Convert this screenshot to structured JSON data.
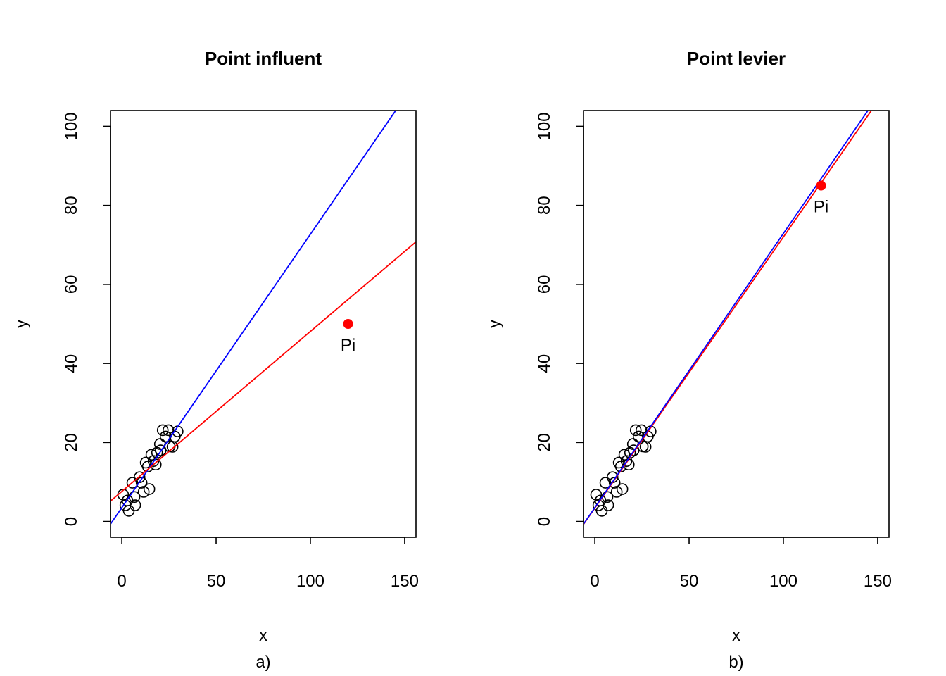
{
  "chart_data": [
    {
      "type": "scatter",
      "title": "Point influent",
      "xlabel": "x",
      "ylabel": "y",
      "subtitle": "a)",
      "xlim": [
        0,
        150
      ],
      "ylim": [
        0,
        100
      ],
      "xticks": [
        0,
        50,
        100,
        150
      ],
      "yticks": [
        0,
        20,
        40,
        60,
        80,
        100
      ],
      "grid": false,
      "points": {
        "x": [
          0.7,
          1.9,
          3.7,
          3.0,
          5.6,
          7.1,
          6.7,
          9.4,
          10.5,
          11.6,
          12.7,
          13.8,
          14.6,
          15.7,
          16.8,
          18.0,
          18.7,
          20.2,
          20.6,
          21.7,
          23.2,
          24.7,
          25.4,
          26.9,
          28.1,
          29.6
        ],
        "y": [
          6.8,
          4.1,
          2.7,
          5.3,
          9.8,
          4.1,
          6.2,
          11.2,
          9.8,
          7.5,
          14.9,
          13.9,
          8.2,
          16.9,
          15.3,
          14.4,
          17.4,
          19.6,
          18.0,
          23.1,
          21.5,
          23.1,
          19.0,
          18.9,
          21.5,
          22.8
        ]
      },
      "special_point": {
        "label": "Pi",
        "x": 120,
        "y": 50,
        "color": "#ff0000"
      },
      "lines": [
        {
          "color": "#0000ff",
          "intercept": 3.5,
          "slope": 0.692
        },
        {
          "color": "#ff0000",
          "intercept": 7.6,
          "slope": 0.405
        }
      ]
    },
    {
      "type": "scatter",
      "title": "Point levier",
      "xlabel": "x",
      "ylabel": "y",
      "subtitle": "b)",
      "xlim": [
        0,
        150
      ],
      "ylim": [
        0,
        100
      ],
      "xticks": [
        0,
        50,
        100,
        150
      ],
      "yticks": [
        0,
        20,
        40,
        60,
        80,
        100
      ],
      "grid": false,
      "points": {
        "x": [
          0.7,
          1.9,
          3.7,
          3.0,
          5.6,
          7.1,
          6.7,
          9.4,
          10.5,
          11.6,
          12.7,
          13.8,
          14.6,
          15.7,
          16.8,
          18.0,
          18.7,
          20.2,
          20.6,
          21.7,
          23.2,
          24.7,
          25.4,
          26.9,
          28.1,
          29.6
        ],
        "y": [
          6.8,
          4.1,
          2.7,
          5.3,
          9.8,
          4.1,
          6.2,
          11.2,
          9.8,
          7.5,
          14.9,
          13.9,
          8.2,
          16.9,
          15.3,
          14.4,
          17.4,
          19.6,
          18.0,
          23.1,
          21.5,
          23.1,
          19.0,
          18.9,
          21.5,
          22.8
        ]
      },
      "special_point": {
        "label": "Pi",
        "x": 120,
        "y": 85,
        "color": "#ff0000"
      },
      "lines": [
        {
          "color": "#ff0000",
          "intercept": 3.4,
          "slope": 0.686
        },
        {
          "color": "#0000ff",
          "intercept": 3.5,
          "slope": 0.694
        }
      ]
    }
  ]
}
